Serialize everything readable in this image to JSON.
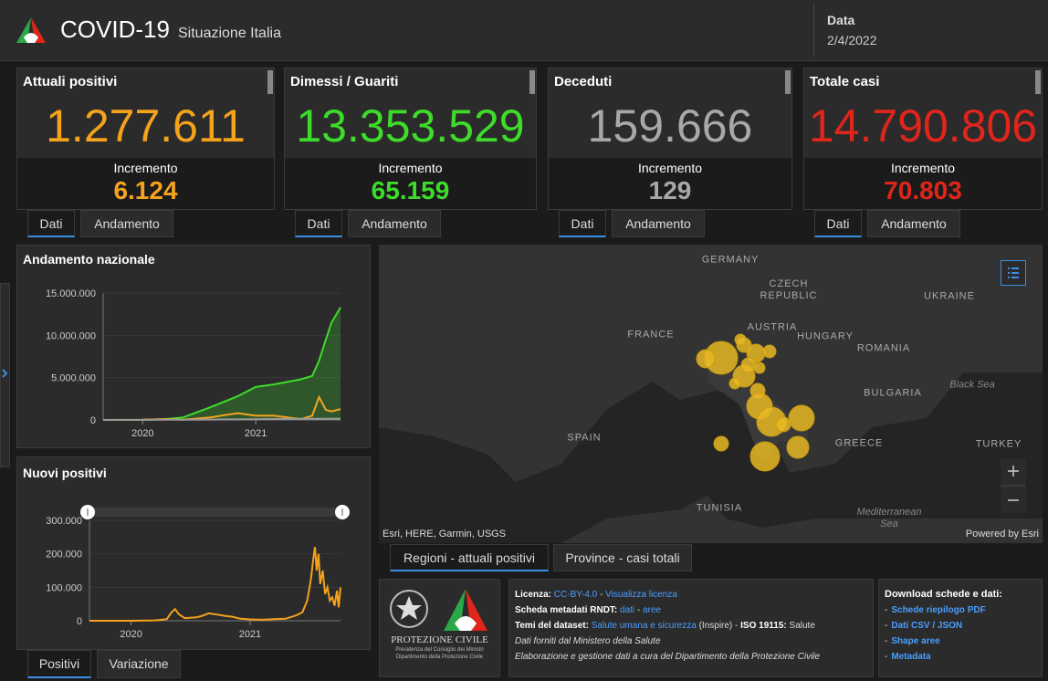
{
  "header": {
    "title": "COVID-19",
    "subtitle": "Situazione Italia",
    "date_label": "Data",
    "date": "2/4/2022"
  },
  "cards": [
    {
      "title": "Attuali positivi",
      "value": "1.277.611",
      "increment_label": "Incremento",
      "increment": "6.124",
      "color": "#f5a21c",
      "tabs": [
        "Dati",
        "Andamento"
      ]
    },
    {
      "title": "Dimessi / Guariti",
      "value": "13.353.529",
      "increment_label": "Incremento",
      "increment": "65.159",
      "color": "#3ddc2a",
      "tabs": [
        "Dati",
        "Andamento"
      ]
    },
    {
      "title": "Deceduti",
      "value": "159.666",
      "increment_label": "Incremento",
      "increment": "129",
      "color": "#a8a8a8",
      "tabs": [
        "Dati",
        "Andamento"
      ]
    },
    {
      "title": "Totale casi",
      "value": "14.790.806",
      "increment_label": "Incremento",
      "increment": "70.803",
      "color": "#e0251b",
      "tabs": [
        "Dati",
        "Andamento"
      ]
    }
  ],
  "charts": [
    {
      "type": "line",
      "title": "Andamento nazionale",
      "x": [
        2019.65,
        2020.0,
        2020.2,
        2020.36,
        2020.6,
        2020.84,
        2021.0,
        2021.16,
        2021.4,
        2021.5,
        2021.56,
        2021.62,
        2021.67,
        2021.75
      ],
      "series": [
        {
          "color": "#3ddc2a",
          "area": true,
          "values": [
            0,
            10000,
            100000,
            300000,
            1500000,
            2800000,
            3900000,
            4200000,
            4800000,
            5200000,
            7000000,
            9500000,
            11500000,
            13300000
          ]
        },
        {
          "color": "#f5a21c",
          "area": false,
          "values": [
            0,
            20000,
            100000,
            20000,
            300000,
            800000,
            500000,
            500000,
            100000,
            500000,
            2700000,
            1200000,
            1000000,
            1280000
          ]
        },
        {
          "color": "#9a9a9a",
          "area": false,
          "values": [
            0,
            5000,
            30000,
            35000,
            40000,
            60000,
            90000,
            110000,
            127000,
            130000,
            135000,
            140000,
            145000,
            155000
          ]
        }
      ],
      "xlim": [
        2019.65,
        2021.75
      ],
      "xticks": [
        2020,
        2021
      ],
      "ylim": [
        0,
        15000000
      ],
      "yticks": [
        0,
        {
          "value": 5000000,
          "label": "5.000.000"
        },
        {
          "value": 10000000,
          "label": "10.000.000"
        },
        {
          "value": 15000000,
          "label": "15.000.000"
        }
      ]
    },
    {
      "type": "line",
      "title": "Nuovi positivi",
      "x": [
        2019.65,
        2020.0,
        2020.2,
        2020.3,
        2020.34,
        2020.37,
        2020.4,
        2020.45,
        2020.55,
        2020.6,
        2020.65,
        2020.7,
        2020.78,
        2020.85,
        2020.92,
        2021.0,
        2021.1,
        2021.2,
        2021.3,
        2021.38,
        2021.44,
        2021.48,
        2021.51,
        2021.53,
        2021.545,
        2021.56,
        2021.575,
        2021.59,
        2021.61,
        2021.63,
        2021.65,
        2021.67,
        2021.69,
        2021.71,
        2021.73,
        2021.745,
        2021.76
      ],
      "series": [
        {
          "color": "#f5a21c",
          "area": false,
          "values": [
            0,
            0,
            1000,
            5000,
            25000,
            35000,
            20000,
            8000,
            10000,
            15000,
            22000,
            20000,
            15000,
            12000,
            6000,
            4000,
            3000,
            5000,
            6000,
            15000,
            25000,
            60000,
            120000,
            180000,
            220000,
            150000,
            200000,
            110000,
            150000,
            80000,
            100000,
            60000,
            70000,
            45000,
            90000,
            40000,
            100000
          ]
        }
      ],
      "xlim": [
        2019.65,
        2021.76
      ],
      "xticks": [
        2020,
        2021
      ],
      "ylim": [
        0,
        300000
      ],
      "yticks": [
        0,
        {
          "value": 100000,
          "label": "100.000"
        },
        {
          "value": 200000,
          "label": "200.000"
        },
        {
          "value": 300000,
          "label": "300.000"
        }
      ]
    }
  ],
  "chart_tabs": [
    "Positivi",
    "Variazione"
  ],
  "map": {
    "labels": [
      "GERMANY",
      "CZECH REPUBLIC",
      "UKRAINE",
      "FRANCE",
      "AUSTRIA",
      "HUNGARY",
      "ROMANIA",
      "BULGARIA",
      "Black Sea",
      "SPAIN",
      "GREECE",
      "TURKEY",
      "TUNISIA",
      "Mediterranean Sea"
    ],
    "attribution": "Esri, HERE, Garmin, USGS",
    "powered": "Powered by Esri",
    "tabs": [
      "Regioni - attuali positivi",
      "Province - casi totali"
    ]
  },
  "logo": {
    "name": "PROTEZIONE CIVILE",
    "line1": "Presidenza del Consiglio dei Ministri",
    "line2": "Dipartimento della Protezione Civile"
  },
  "info": {
    "lines": [
      [
        {
          "text": "Licenza: ",
          "kind": "label"
        },
        {
          "text": "CC-BY-4.0",
          "kind": "link"
        },
        {
          "text": " - ",
          "kind": "text"
        },
        {
          "text": "Visualizza licenza",
          "kind": "link"
        }
      ],
      [
        {
          "text": "Scheda metadati RNDT: ",
          "kind": "label"
        },
        {
          "text": "dati",
          "kind": "link"
        },
        {
          "text": " - ",
          "kind": "text"
        },
        {
          "text": "aree",
          "kind": "link"
        }
      ],
      [
        {
          "text": "Temi del dataset: ",
          "kind": "label"
        },
        {
          "text": "Salute umana e sicurezza",
          "kind": "link"
        },
        {
          "text": " (Inspire) - ",
          "kind": "text"
        },
        {
          "text": "ISO 19115: ",
          "kind": "label"
        },
        {
          "text": "Salute",
          "kind": "text"
        }
      ],
      [
        {
          "text": "Dati forniti dal Ministero della Salute",
          "kind": "italic"
        }
      ],
      [
        {
          "text": "Elaborazione e gestione dati a cura del Dipartimento della Protezione Civile",
          "kind": "italic"
        }
      ]
    ]
  },
  "download": {
    "title": "Download schede e dati:",
    "bullet": "-",
    "items": [
      "Schede riepilogo PDF",
      "Dati CSV / JSON",
      "Shape aree",
      "Metadata"
    ]
  }
}
